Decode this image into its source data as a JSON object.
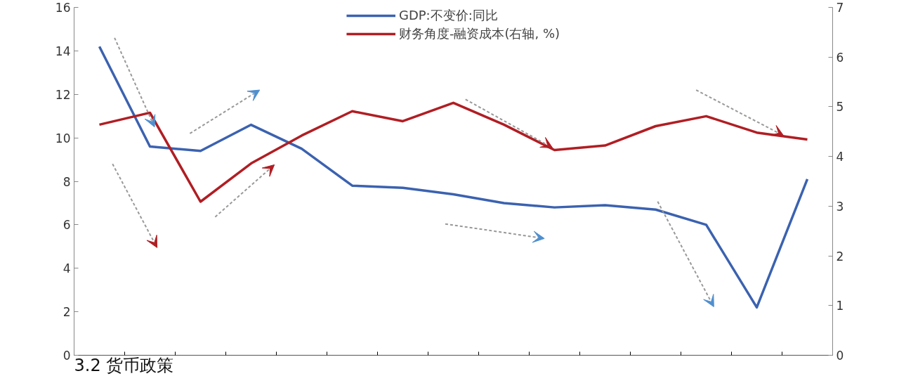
{
  "chart_data": {
    "type": "line",
    "categories": [
      null,
      null,
      null,
      null,
      null,
      null,
      null,
      null,
      null,
      null,
      null,
      null,
      null,
      null,
      null
    ],
    "series": [
      {
        "name": "GDP:不变价:同比",
        "color": "#3b62b0",
        "values": [
          14.2,
          9.6,
          9.4,
          10.6,
          9.5,
          7.8,
          7.7,
          7.4,
          7.0,
          6.8,
          6.9,
          6.7,
          6.0,
          2.2,
          8.1
        ]
      },
      {
        "name": "财务角度-融资成本(右轴, %)",
        "color": "#b01e23",
        "axis": "y2",
        "values": [
          4.64,
          4.88,
          3.09,
          3.86,
          4.42,
          4.91,
          4.71,
          5.08,
          4.64,
          4.13,
          4.22,
          4.61,
          4.81,
          4.48,
          4.34
        ]
      }
    ],
    "ylim": [
      0,
      16
    ],
    "yticks": [
      0,
      2,
      4,
      6,
      8,
      10,
      12,
      14,
      16
    ],
    "y2lim": [
      0,
      7
    ],
    "y2ticks": [
      0,
      1,
      2,
      3,
      4,
      5,
      6,
      7
    ],
    "tick_labels": "y",
    "grid": false,
    "legend": "top",
    "marker": "none",
    "line_style": "solid",
    "annotations": [
      "3.2 货币政策"
    ]
  }
}
